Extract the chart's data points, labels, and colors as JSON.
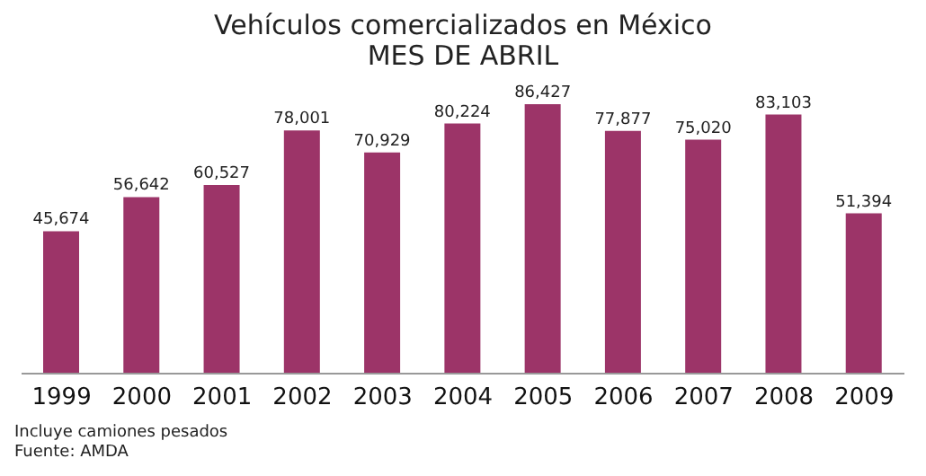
{
  "chart_data": {
    "type": "bar",
    "title": "Vehículos comercializados en México",
    "subtitle": "MES DE ABRIL",
    "categories": [
      "1999",
      "2000",
      "2001",
      "2002",
      "2003",
      "2004",
      "2005",
      "2006",
      "2007",
      "2008",
      "2009"
    ],
    "values": [
      45674,
      56642,
      60527,
      78001,
      70929,
      80224,
      86427,
      77877,
      75020,
      83103,
      51394
    ],
    "value_labels": [
      "45,674",
      "56,642",
      "60,527",
      "78,001",
      "70,929",
      "80,224",
      "86,427",
      "77,877",
      "75,020",
      "83,103",
      "51,394"
    ],
    "color": "#9c3468",
    "tick_labels": "x",
    "annotations": [
      "Incluye camiones pesados",
      "Fuente: AMDA"
    ]
  }
}
